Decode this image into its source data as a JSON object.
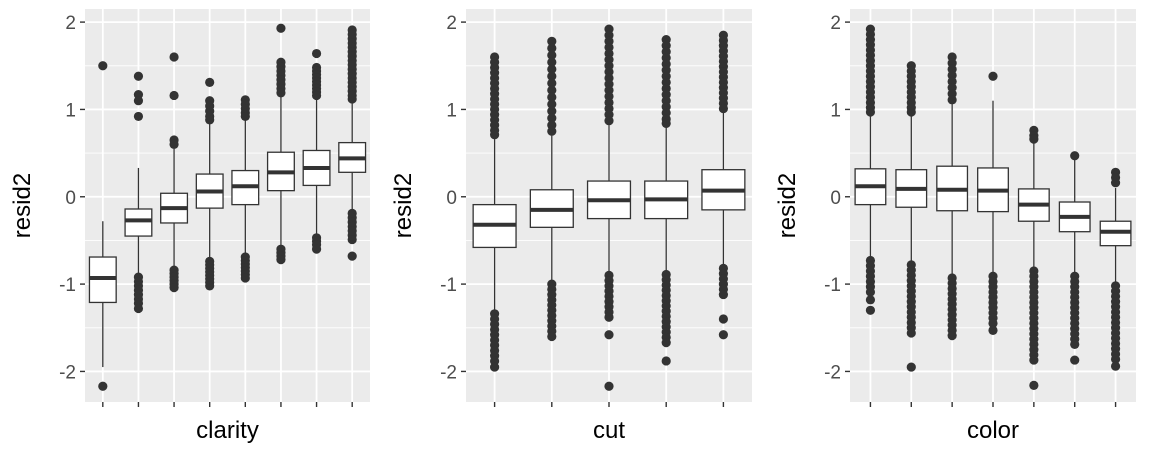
{
  "colors": {
    "panel_background": "#ebebeb",
    "grid": "#ffffff",
    "box_fill": "#ffffff",
    "box_line": "#333333",
    "tick_text": "#4d4d4d"
  },
  "chart_data": [
    {
      "type": "boxplot",
      "xlabel": "clarity",
      "ylabel": "resid2",
      "ylim": [
        -2.35,
        2.15
      ],
      "yticks": [
        -2,
        -1,
        0,
        1,
        2
      ],
      "y_tick_labels": [
        "-2",
        "-1",
        "0",
        "1",
        "2"
      ],
      "x_tick_labels": "none",
      "grid": true,
      "boxes": [
        {
          "q1": -1.21,
          "median": -0.93,
          "q3": -0.69,
          "whisker_low": -1.95,
          "whisker_high": -0.28,
          "outliers": [
            1.5,
            -2.17
          ]
        },
        {
          "q1": -0.45,
          "median": -0.27,
          "q3": -0.14,
          "whisker_low": -0.9,
          "whisker_high": 0.33,
          "outliers": [
            1.38,
            1.17,
            1.1,
            0.92,
            -0.92,
            -0.97,
            -1.02,
            -1.07,
            -1.12,
            -1.17,
            -1.22,
            -1.28
          ]
        },
        {
          "q1": -0.3,
          "median": -0.13,
          "q3": 0.04,
          "whisker_low": -0.82,
          "whisker_high": 0.55,
          "outliers": [
            1.6,
            1.16,
            0.65,
            0.6,
            -0.84,
            -0.88,
            -0.92,
            -0.96,
            -1.0,
            -1.04
          ]
        },
        {
          "q1": -0.13,
          "median": 0.06,
          "q3": 0.26,
          "whisker_low": -0.72,
          "whisker_high": 0.84,
          "outliers": [
            1.31,
            1.1,
            1.04,
            0.98,
            0.92,
            0.88,
            -0.74,
            -0.78,
            -0.82,
            -0.86,
            -0.9,
            -0.94,
            -0.98,
            -1.02
          ]
        },
        {
          "q1": -0.09,
          "median": 0.12,
          "q3": 0.3,
          "whisker_low": -0.66,
          "whisker_high": 0.88,
          "outliers": [
            1.11,
            1.06,
            1.01,
            0.96,
            0.92,
            -0.69,
            -0.73,
            -0.77,
            -0.81,
            -0.85,
            -0.89,
            -0.93
          ]
        },
        {
          "q1": 0.07,
          "median": 0.28,
          "q3": 0.51,
          "whisker_low": -0.57,
          "whisker_high": 1.15,
          "outliers": [
            1.93,
            1.54,
            1.49,
            1.44,
            1.39,
            1.34,
            1.29,
            1.24,
            1.19,
            -0.6,
            -0.64,
            -0.68,
            -0.72
          ]
        },
        {
          "q1": 0.13,
          "median": 0.33,
          "q3": 0.53,
          "whisker_low": -0.45,
          "whisker_high": 1.11,
          "outliers": [
            1.64,
            1.48,
            1.44,
            1.4,
            1.36,
            1.32,
            1.28,
            1.24,
            1.2,
            1.16,
            -0.47,
            -0.51,
            -0.55,
            -0.6
          ]
        },
        {
          "q1": 0.28,
          "median": 0.44,
          "q3": 0.62,
          "whisker_low": -0.19,
          "whisker_high": 1.1,
          "outliers": [
            1.91,
            1.86,
            1.81,
            1.76,
            1.71,
            1.66,
            1.61,
            1.56,
            1.51,
            1.46,
            1.41,
            1.36,
            1.31,
            1.26,
            1.21,
            1.16,
            1.12,
            -0.19,
            -0.24,
            -0.29,
            -0.34,
            -0.39,
            -0.44,
            -0.49,
            -0.68
          ]
        }
      ]
    },
    {
      "type": "boxplot",
      "xlabel": "cut",
      "ylabel": "resid2",
      "ylim": [
        -2.35,
        2.15
      ],
      "yticks": [
        -2,
        -1,
        0,
        1,
        2
      ],
      "y_tick_labels": [
        "-2",
        "-1",
        "0",
        "1",
        "2"
      ],
      "x_tick_labels": "none",
      "grid": true,
      "boxes": [
        {
          "q1": -0.58,
          "median": -0.32,
          "q3": -0.09,
          "whisker_low": -1.31,
          "whisker_high": 0.66,
          "outliers": [
            1.6,
            1.54,
            1.48,
            1.42,
            1.36,
            1.3,
            1.24,
            1.18,
            1.12,
            1.06,
            1.0,
            0.94,
            0.88,
            0.82,
            0.76,
            0.71,
            -1.34,
            -1.4,
            -1.46,
            -1.52,
            -1.58,
            -1.64,
            -1.7,
            -1.76,
            -1.82,
            -1.88,
            -1.95
          ]
        },
        {
          "q1": -0.35,
          "median": -0.15,
          "q3": 0.08,
          "whisker_low": -0.97,
          "whisker_high": 0.7,
          "outliers": [
            1.78,
            1.7,
            1.62,
            1.54,
            1.46,
            1.38,
            1.3,
            1.22,
            1.14,
            1.06,
            0.98,
            0.9,
            0.82,
            0.75,
            -1.0,
            -1.06,
            -1.12,
            -1.18,
            -1.24,
            -1.3,
            -1.36,
            -1.42,
            -1.48,
            -1.54,
            -1.6
          ]
        },
        {
          "q1": -0.25,
          "median": -0.04,
          "q3": 0.18,
          "whisker_low": -0.87,
          "whisker_high": 0.82,
          "outliers": [
            1.92,
            1.85,
            1.78,
            1.71,
            1.64,
            1.57,
            1.5,
            1.43,
            1.36,
            1.29,
            1.22,
            1.15,
            1.08,
            1.01,
            0.94,
            0.87,
            -0.9,
            -0.96,
            -1.02,
            -1.08,
            -1.14,
            -1.2,
            -1.26,
            -1.32,
            -1.38,
            -1.58,
            -2.17
          ]
        },
        {
          "q1": -0.25,
          "median": -0.03,
          "q3": 0.18,
          "whisker_low": -0.86,
          "whisker_high": 0.8,
          "outliers": [
            1.8,
            1.73,
            1.66,
            1.59,
            1.52,
            1.45,
            1.38,
            1.31,
            1.24,
            1.17,
            1.1,
            1.03,
            0.96,
            0.89,
            0.84,
            -0.89,
            -0.95,
            -1.01,
            -1.07,
            -1.13,
            -1.19,
            -1.25,
            -1.31,
            -1.37,
            -1.43,
            -1.49,
            -1.55,
            -1.61,
            -1.67,
            -1.88
          ]
        },
        {
          "q1": -0.15,
          "median": 0.07,
          "q3": 0.31,
          "whisker_low": -0.79,
          "whisker_high": 0.96,
          "outliers": [
            1.85,
            1.79,
            1.73,
            1.67,
            1.61,
            1.55,
            1.49,
            1.43,
            1.37,
            1.31,
            1.25,
            1.19,
            1.13,
            1.07,
            1.01,
            -0.82,
            -0.88,
            -0.94,
            -1.0,
            -1.06,
            -1.12,
            -1.4,
            -1.58
          ]
        }
      ]
    },
    {
      "type": "boxplot",
      "xlabel": "color",
      "ylabel": "resid2",
      "ylim": [
        -2.35,
        2.15
      ],
      "yticks": [
        -2,
        -1,
        0,
        1,
        2
      ],
      "y_tick_labels": [
        "-2",
        "-1",
        "0",
        "1",
        "2"
      ],
      "x_tick_labels": "none",
      "grid": true,
      "boxes": [
        {
          "q1": -0.09,
          "median": 0.12,
          "q3": 0.32,
          "whisker_low": -0.7,
          "whisker_high": 0.92,
          "outliers": [
            1.92,
            1.86,
            1.8,
            1.74,
            1.68,
            1.62,
            1.56,
            1.5,
            1.44,
            1.38,
            1.32,
            1.26,
            1.2,
            1.14,
            1.08,
            1.02,
            0.97,
            -0.73,
            -0.79,
            -0.85,
            -0.91,
            -0.97,
            -1.03,
            -1.09,
            -1.18,
            -1.3
          ]
        },
        {
          "q1": -0.12,
          "median": 0.09,
          "q3": 0.31,
          "whisker_low": -0.75,
          "whisker_high": 0.93,
          "outliers": [
            1.5,
            1.44,
            1.38,
            1.32,
            1.26,
            1.2,
            1.14,
            1.08,
            1.02,
            0.97,
            -0.78,
            -0.84,
            -0.9,
            -0.96,
            -1.02,
            -1.08,
            -1.14,
            -1.2,
            -1.26,
            -1.32,
            -1.38,
            -1.44,
            -1.5,
            -1.56,
            -1.95
          ]
        },
        {
          "q1": -0.16,
          "median": 0.08,
          "q3": 0.35,
          "whisker_low": -0.9,
          "whisker_high": 1.07,
          "outliers": [
            1.6,
            1.53,
            1.46,
            1.39,
            1.32,
            1.25,
            1.18,
            1.11,
            -0.93,
            -0.99,
            -1.05,
            -1.11,
            -1.17,
            -1.23,
            -1.29,
            -1.35,
            -1.41,
            -1.47,
            -1.53,
            -1.59
          ]
        },
        {
          "q1": -0.17,
          "median": 0.07,
          "q3": 0.33,
          "whisker_low": -0.88,
          "whisker_high": 1.1,
          "outliers": [
            1.38,
            -0.91,
            -0.97,
            -1.03,
            -1.09,
            -1.15,
            -1.21,
            -1.27,
            -1.33,
            -1.39,
            -1.45,
            -1.53
          ]
        },
        {
          "q1": -0.28,
          "median": -0.09,
          "q3": 0.09,
          "whisker_low": -0.82,
          "whisker_high": 0.64,
          "outliers": [
            0.76,
            0.7,
            0.66,
            -0.85,
            -0.91,
            -0.97,
            -1.03,
            -1.09,
            -1.15,
            -1.21,
            -1.27,
            -1.33,
            -1.39,
            -1.45,
            -1.51,
            -1.57,
            -1.63,
            -1.69,
            -1.75,
            -1.81,
            -1.87,
            -2.16
          ]
        },
        {
          "q1": -0.4,
          "median": -0.23,
          "q3": -0.06,
          "whisker_low": -0.88,
          "whisker_high": 0.43,
          "outliers": [
            0.47,
            -0.91,
            -0.97,
            -1.03,
            -1.09,
            -1.15,
            -1.21,
            -1.27,
            -1.33,
            -1.39,
            -1.45,
            -1.51,
            -1.57,
            -1.63,
            -1.69,
            -1.87
          ]
        },
        {
          "q1": -0.56,
          "median": -0.4,
          "q3": -0.28,
          "whisker_low": -0.99,
          "whisker_high": 0.1,
          "outliers": [
            0.28,
            0.22,
            0.16,
            -1.02,
            -1.08,
            -1.14,
            -1.2,
            -1.26,
            -1.32,
            -1.38,
            -1.44,
            -1.5,
            -1.56,
            -1.62,
            -1.68,
            -1.74,
            -1.8,
            -1.86,
            -1.94
          ]
        }
      ]
    }
  ]
}
